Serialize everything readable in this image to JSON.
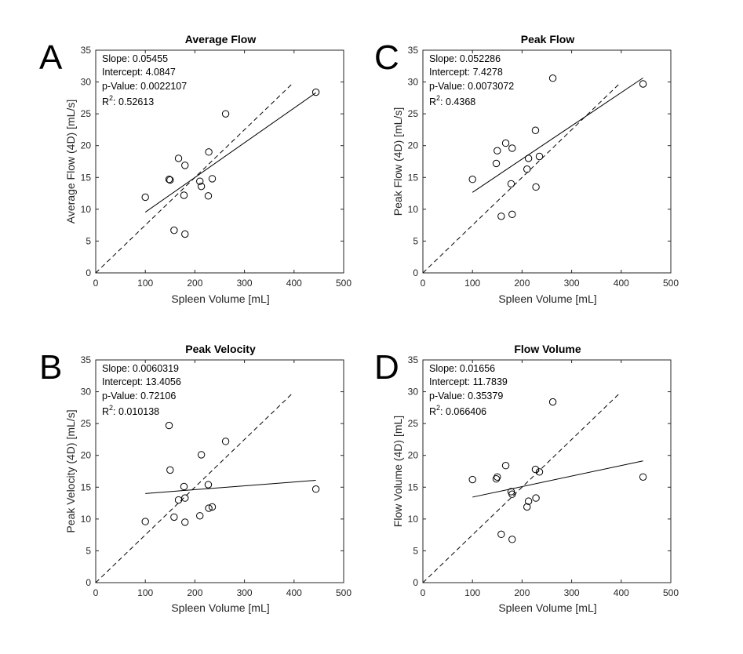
{
  "colors": {
    "axis": "#262626",
    "mark": "#000000",
    "background": "#ffffff"
  },
  "chart_data": [
    {
      "type": "scatter",
      "panel_label": "A",
      "title": "Average Flow",
      "xlabel": "Spleen Volume [mL]",
      "ylabel": "Average Flow (4D) [mL/s]",
      "xlim": [
        0,
        500
      ],
      "ylim": [
        0,
        35
      ],
      "xticks": [
        0,
        100,
        200,
        300,
        400,
        500
      ],
      "yticks": [
        0,
        5,
        10,
        15,
        20,
        25,
        30,
        35
      ],
      "points": [
        [
          100,
          11.9
        ],
        [
          148,
          14.7
        ],
        [
          150,
          14.6
        ],
        [
          158,
          6.7
        ],
        [
          167,
          18.0
        ],
        [
          178,
          12.2
        ],
        [
          180,
          6.1
        ],
        [
          180,
          16.9
        ],
        [
          210,
          14.4
        ],
        [
          213,
          13.6
        ],
        [
          227,
          12.1
        ],
        [
          228,
          19.0
        ],
        [
          235,
          14.8
        ],
        [
          262,
          25.0
        ],
        [
          444,
          28.4
        ]
      ],
      "fit_x": [
        100,
        444
      ],
      "identity_x": [
        0,
        397
      ],
      "stats": {
        "slope": "Slope: 0.05455",
        "intercept": "Intercept: 4.0847",
        "pvalue": "p-Value: 0.0022107",
        "r2_label": "R",
        "r2_sup": "2",
        "r2_value": ": 0.52613"
      }
    },
    {
      "type": "scatter",
      "panel_label": "C",
      "title": "Peak Flow",
      "xlabel": "Spleen Volume [mL]",
      "ylabel": "Peak Flow (4D) [mL/s]",
      "xlim": [
        0,
        500
      ],
      "ylim": [
        0,
        35
      ],
      "xticks": [
        0,
        100,
        200,
        300,
        400,
        500
      ],
      "yticks": [
        0,
        5,
        10,
        15,
        20,
        25,
        30,
        35
      ],
      "points": [
        [
          100,
          14.7
        ],
        [
          148,
          17.2
        ],
        [
          150,
          19.2
        ],
        [
          158,
          8.9
        ],
        [
          167,
          20.4
        ],
        [
          178,
          14.0
        ],
        [
          180,
          9.2
        ],
        [
          180,
          19.6
        ],
        [
          210,
          16.3
        ],
        [
          213,
          18.0
        ],
        [
          227,
          22.4
        ],
        [
          228,
          13.5
        ],
        [
          235,
          18.3
        ],
        [
          262,
          30.6
        ],
        [
          444,
          29.7
        ]
      ],
      "fit_x": [
        100,
        444
      ],
      "identity_x": [
        0,
        397
      ],
      "stats": {
        "slope": "Slope: 0.052286",
        "intercept": "Intercept: 7.4278",
        "pvalue": "p-Value: 0.0073072",
        "r2_label": "R",
        "r2_sup": "2",
        "r2_value": ": 0.4368"
      }
    },
    {
      "type": "scatter",
      "panel_label": "B",
      "title": "Peak Velocity",
      "xlabel": "Spleen Volume [mL]",
      "ylabel": "Peak Velocity (4D) [mL/s]",
      "xlim": [
        0,
        500
      ],
      "ylim": [
        0,
        35
      ],
      "xticks": [
        0,
        100,
        200,
        300,
        400,
        500
      ],
      "yticks": [
        0,
        5,
        10,
        15,
        20,
        25,
        30,
        35
      ],
      "points": [
        [
          100,
          9.6
        ],
        [
          148,
          24.7
        ],
        [
          150,
          17.7
        ],
        [
          158,
          10.3
        ],
        [
          167,
          13.0
        ],
        [
          178,
          15.1
        ],
        [
          180,
          13.3
        ],
        [
          180,
          9.5
        ],
        [
          210,
          10.5
        ],
        [
          213,
          20.1
        ],
        [
          227,
          15.4
        ],
        [
          228,
          11.7
        ],
        [
          235,
          11.9
        ],
        [
          262,
          22.2
        ],
        [
          444,
          14.7
        ]
      ],
      "fit_x": [
        100,
        444
      ],
      "identity_x": [
        0,
        397
      ],
      "stats": {
        "slope": "Slope: 0.0060319",
        "intercept": "Intercept: 13.4056",
        "pvalue": "p-Value: 0.72106",
        "r2_label": "R",
        "r2_sup": "2",
        "r2_value": ": 0.010138"
      }
    },
    {
      "type": "scatter",
      "panel_label": "D",
      "title": "Flow Volume",
      "xlabel": "Spleen Volume [mL]",
      "ylabel": "Flow Volume (4D) [mL]",
      "xlim": [
        0,
        500
      ],
      "ylim": [
        0,
        35
      ],
      "xticks": [
        0,
        100,
        200,
        300,
        400,
        500
      ],
      "yticks": [
        0,
        5,
        10,
        15,
        20,
        25,
        30,
        35
      ],
      "points": [
        [
          100,
          16.2
        ],
        [
          148,
          16.3
        ],
        [
          150,
          16.6
        ],
        [
          158,
          7.6
        ],
        [
          167,
          18.4
        ],
        [
          178,
          14.3
        ],
        [
          180,
          6.8
        ],
        [
          180,
          13.9
        ],
        [
          210,
          11.9
        ],
        [
          213,
          12.8
        ],
        [
          227,
          17.8
        ],
        [
          228,
          13.3
        ],
        [
          235,
          17.4
        ],
        [
          262,
          28.4
        ],
        [
          444,
          16.6
        ]
      ],
      "fit_x": [
        100,
        444
      ],
      "identity_x": [
        0,
        397
      ],
      "stats": {
        "slope": "Slope: 0.01656",
        "intercept": "Intercept: 11.7839",
        "pvalue": "p-Value: 0.35379",
        "r2_label": "R",
        "r2_sup": "2",
        "r2_value": ": 0.066406"
      }
    }
  ]
}
